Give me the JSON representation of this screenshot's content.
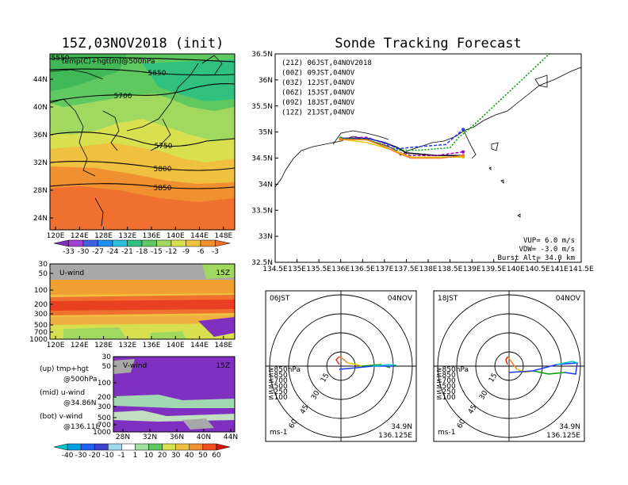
{
  "map_panel": {
    "title": "15Z,03NOV2018 (init)",
    "field_label": "temp(C)+hgt(m)@500hPa",
    "contours": [
      "5550",
      "5650",
      "5700",
      "5750",
      "5800",
      "5850"
    ],
    "xticks": [
      "120E",
      "124E",
      "128E",
      "132E",
      "136E",
      "140E",
      "144E",
      "148E"
    ],
    "yticks": [
      "44N",
      "40N",
      "36N",
      "32N",
      "28N",
      "24N"
    ],
    "colorbar": [
      "-33",
      "-30",
      "-27",
      "-24",
      "-21",
      "-18",
      "-15",
      "-12",
      "-9",
      "-6",
      "-3"
    ]
  },
  "uwind_panel": {
    "label": "U-wind",
    "time": "15Z",
    "yticks": [
      "30",
      "50",
      "100",
      "200",
      "300",
      "500",
      "700",
      "1000"
    ],
    "xticks": [
      "120E",
      "124E",
      "128E",
      "132E",
      "136E",
      "140E",
      "144E",
      "148E"
    ]
  },
  "vwind_panel": {
    "label": "V-wind",
    "time": "15Z",
    "yticks": [
      "30",
      "50",
      "100",
      "200",
      "300",
      "500",
      "700",
      "1000"
    ],
    "xticks": [
      "28N",
      "32N",
      "36N",
      "40N",
      "44N"
    ],
    "colorbar": [
      "-40",
      "-30",
      "-20",
      "-10",
      "-1",
      "1",
      "10",
      "20",
      "30",
      "40",
      "50",
      "60"
    ]
  },
  "legend_text": [
    "(up) tmp+hgt",
    "@500hPa",
    "(mid) u-wind",
    "@34.86N",
    "(bot) v-wind",
    "@136.11E"
  ],
  "track_panel": {
    "title": "Sonde Tracking Forecast",
    "xticks": [
      "134.5E",
      "135E",
      "135.5E",
      "136E",
      "136.5E",
      "137E",
      "137.5E",
      "138E",
      "138.5E",
      "139E",
      "139.5E",
      "140E",
      "140.5E",
      "141E",
      "141.5E"
    ],
    "yticks": [
      "36.5N",
      "36N",
      "35.5N",
      "35N",
      "34.5N",
      "34N",
      "33.5N",
      "33N",
      "32.5N"
    ],
    "legend": [
      {
        "text": "(21Z)  06JST,04NOV2018",
        "color": "#000000"
      },
      {
        "text": "(00Z)  09JST,04NOV",
        "color": "#a000c8"
      },
      {
        "text": "(03Z)  12JST,04NOV",
        "color": "#1e3cff"
      },
      {
        "text": "(06Z)  15JST,04NOV",
        "color": "#00a000"
      },
      {
        "text": "(09Z)  18JST,04NOV",
        "color": "#e6c800"
      },
      {
        "text": "(12Z)  21JST,04NOV",
        "color": "#f08228"
      }
    ],
    "params": [
      "VUP=  6.0 m/s",
      "VDW= -3.0 m/s",
      "Burst Alt= 34.0 km"
    ]
  },
  "hodo_left": {
    "time": "06JST",
    "date": "04NOV",
    "levels": [
      {
        "text": "≥850hPa",
        "color": "#e62828"
      },
      {
        "text": "≤850",
        "color": "#f08228"
      },
      {
        "text": "≤700",
        "color": "#e6c800"
      },
      {
        "text": "≤500",
        "color": "#00a000"
      },
      {
        "text": "≤250",
        "color": "#00c8c8"
      },
      {
        "text": "≤100",
        "color": "#1e3cff"
      }
    ],
    "ring_labels": [
      "15",
      "30",
      "45",
      "60"
    ],
    "unit": "ms-1",
    "lat": "34.9N",
    "lon": "136.125E"
  },
  "hodo_right": {
    "time": "18JST",
    "date": "04NOV",
    "levels": [
      {
        "text": "≥850hPa",
        "color": "#e62828"
      },
      {
        "text": "≤850",
        "color": "#f08228"
      },
      {
        "text": "≤700",
        "color": "#e6c800"
      },
      {
        "text": "≤500",
        "color": "#00a000"
      },
      {
        "text": "≤250",
        "color": "#00c8c8"
      },
      {
        "text": "≤100",
        "color": "#1e3cff"
      }
    ],
    "ring_labels": [
      "15",
      "30",
      "45",
      "60"
    ],
    "unit": "ms-1",
    "lat": "34.9N",
    "lon": "136.125E"
  },
  "chart_data": [
    {
      "type": "line",
      "title": "Sonde Tracking Forecast",
      "xlabel": "",
      "ylabel": "",
      "xlim": [
        134.5,
        141.5
      ],
      "ylim": [
        32.5,
        36.5
      ],
      "x_unit": "deg E",
      "y_unit": "deg N",
      "series": [
        {
          "name": "(21Z) 06JST,04NOV2018",
          "color": "#000000",
          "x": [
            136.0,
            136.6,
            137.0,
            137.3,
            137.5,
            138.2,
            138.8
          ],
          "y": [
            34.88,
            34.88,
            34.8,
            34.7,
            34.6,
            34.55,
            34.55
          ]
        },
        {
          "name": "(00Z) 09JST,04NOV",
          "color": "#a000c8",
          "x": [
            136.0,
            136.6,
            137.0,
            137.3,
            137.6,
            138.2,
            138.8
          ],
          "y": [
            34.88,
            34.9,
            34.78,
            34.62,
            34.55,
            34.55,
            34.62
          ]
        },
        {
          "name": "(03Z) 12JST,04NOV",
          "color": "#1e3cff",
          "x": [
            136.0,
            136.6,
            137.0,
            137.3,
            137.8,
            138.4,
            138.8
          ],
          "y": [
            34.88,
            34.88,
            34.8,
            34.68,
            34.72,
            34.76,
            35.05
          ]
        },
        {
          "name": "(06Z) 15JST,04NOV",
          "color": "#00a000",
          "x": [
            136.0,
            136.6,
            137.0,
            137.3,
            137.8,
            138.5,
            138.7,
            139.0,
            140.9
          ],
          "y": [
            34.88,
            34.85,
            34.75,
            34.65,
            34.65,
            34.7,
            34.9,
            35.1,
            36.6
          ]
        },
        {
          "name": "(09Z) 18JST,04NOV",
          "color": "#e6c800",
          "x": [
            136.0,
            136.6,
            137.0,
            137.3,
            137.6,
            138.3,
            138.8
          ],
          "y": [
            34.86,
            34.8,
            34.7,
            34.62,
            34.52,
            34.52,
            34.52
          ]
        },
        {
          "name": "(12Z) 21JST,04NOV",
          "color": "#f08228",
          "x": [
            136.0,
            136.6,
            137.0,
            137.3,
            137.6,
            138.3,
            138.8
          ],
          "y": [
            34.86,
            34.85,
            34.72,
            34.6,
            34.5,
            34.5,
            34.55
          ]
        }
      ]
    }
  ]
}
